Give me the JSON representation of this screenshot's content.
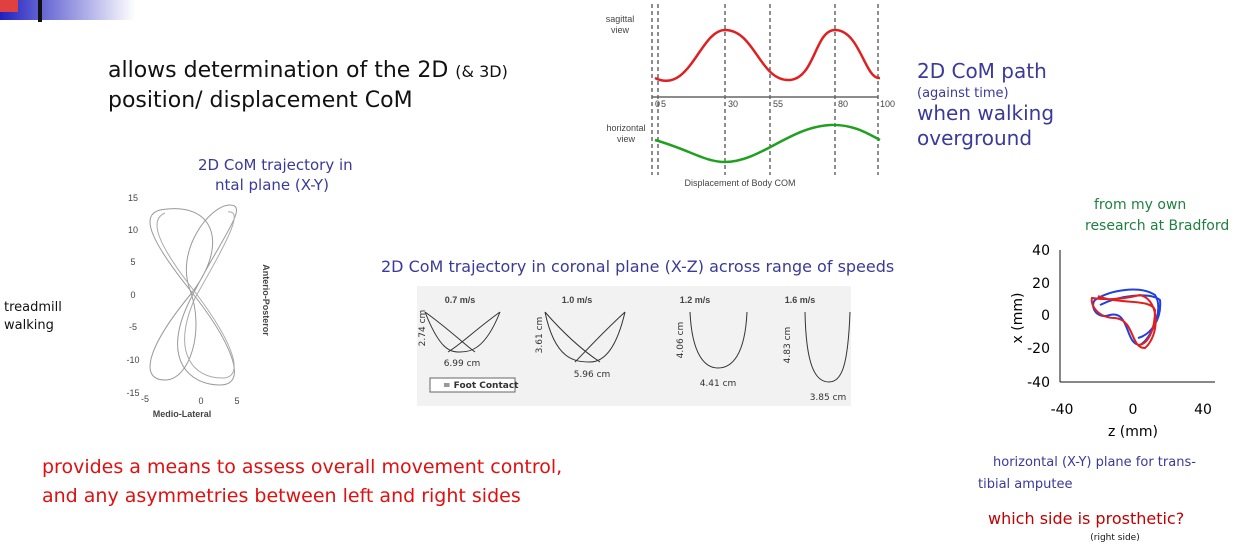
{
  "header": {
    "line1": "allows determination of the 2D",
    "line1_small": "(& 3D)",
    "line2": "position/ displacement CoM"
  },
  "sagittal_figure": {
    "sagittal_label": [
      "sagittal",
      "view"
    ],
    "horizontal_label": [
      "horizontal",
      "view"
    ],
    "ticks": [
      "0",
      "5",
      "30",
      "55",
      "80",
      "100"
    ],
    "caption": "Displacement of Body COM"
  },
  "com_path_note": {
    "line1": "2D CoM path",
    "line2": "(against time)",
    "line3": "when walking",
    "line4": "overground"
  },
  "xy_figure": {
    "title": [
      "2D CoM trajectory in",
      "ntal plane (X-Y)"
    ],
    "yticks": [
      "15",
      "10",
      "5",
      "0",
      "-5",
      "-10",
      "-15"
    ],
    "xticks": [
      "-5",
      "0",
      "5"
    ],
    "xlabel": "Medio-Lateral",
    "ylabel": "Anterio-Posteror"
  },
  "treadmill_note": [
    "treadmill",
    "walking"
  ],
  "coronal_figure": {
    "title": "2D CoM trajectory in coronal plane (X-Z) across range of speeds",
    "panels": [
      {
        "speed": "0.7 m/s",
        "height": "2.74 cm",
        "width": "6.99 cm"
      },
      {
        "speed": "1.0 m/s",
        "height": "3.61 cm",
        "width": "5.96 cm"
      },
      {
        "speed": "1.2 m/s",
        "height": "4.06 cm",
        "width": "4.41 cm"
      },
      {
        "speed": "1.6 m/s",
        "height": "4.83 cm",
        "width": "3.85 cm"
      }
    ],
    "legend": "= Foot Contact"
  },
  "research_figure": {
    "note": [
      "from my own",
      "research at Bradford"
    ],
    "yticks": [
      "40",
      "20",
      "0",
      "-20",
      "-40"
    ],
    "xticks": [
      "-40",
      "0",
      "40"
    ],
    "ylabel": "x (mm)",
    "xlabel": "z (mm)",
    "caption": [
      "horizontal (X-Y) plane for trans-",
      "tibial amputee"
    ],
    "question": "which side is prosthetic?",
    "answer": "(right side)"
  },
  "conclusion": [
    "provides a means to assess overall movement control,",
    "and any asymmetries between left and right sides"
  ]
}
